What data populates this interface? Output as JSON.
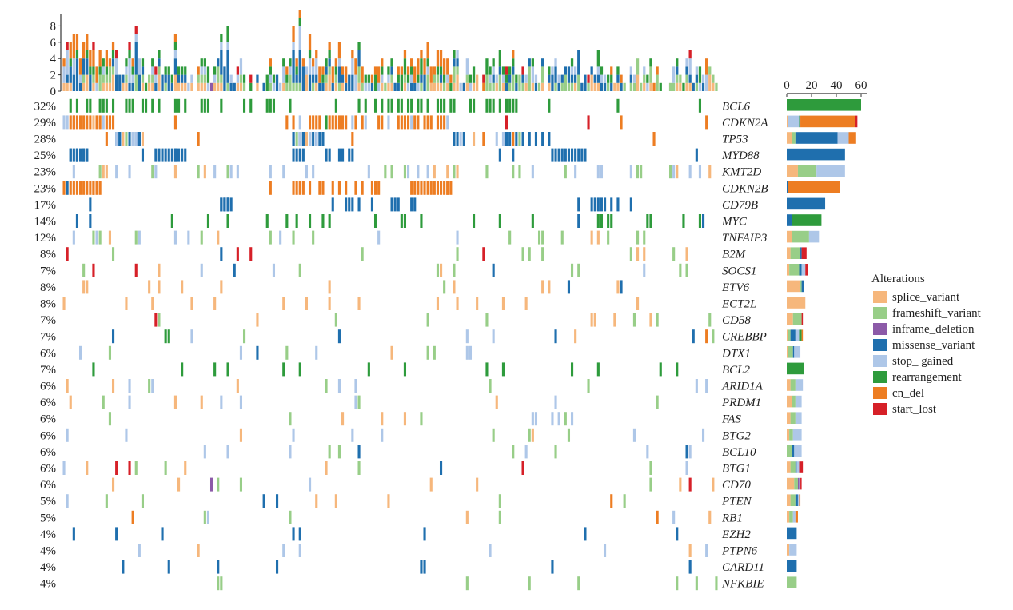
{
  "chart_data": {
    "type": "oncoprint",
    "top_axis": {
      "ticks": [
        0,
        2,
        4,
        6,
        8
      ],
      "ylim": [
        0,
        9.5
      ]
    },
    "side_axis": {
      "ticks": [
        0,
        20,
        40,
        60
      ],
      "xlim": [
        0,
        65
      ]
    },
    "genes": [
      {
        "name": "BCL6",
        "pct": "32%",
        "counts": {
          "rearrangement": 60
        }
      },
      {
        "name": "CDKN2A",
        "pct": "29%",
        "counts": {
          "splice_variant": 1,
          "stop_ gained": 9,
          "rearrangement": 1,
          "cn_del": 44,
          "start_lost": 2
        }
      },
      {
        "name": "TP53",
        "pct": "28%",
        "counts": {
          "splice_variant": 4,
          "frameshift_variant": 3,
          "missense_variant": 34,
          "stop_ gained": 9,
          "cn_del": 6
        }
      },
      {
        "name": "MYD88",
        "pct": "25%",
        "counts": {
          "missense_variant": 47
        }
      },
      {
        "name": "KMT2D",
        "pct": "23%",
        "counts": {
          "splice_variant": 9,
          "frameshift_variant": 15,
          "stop_ gained": 23
        }
      },
      {
        "name": "CDKN2B",
        "pct": "23%",
        "counts": {
          "missense_variant": 1,
          "cn_del": 42
        }
      },
      {
        "name": "CD79B",
        "pct": "17%",
        "counts": {
          "missense_variant": 31
        }
      },
      {
        "name": "MYC",
        "pct": "14%",
        "counts": {
          "missense_variant": 4,
          "rearrangement": 24
        }
      },
      {
        "name": "TNFAIP3",
        "pct": "12%",
        "counts": {
          "splice_variant": 4,
          "frameshift_variant": 14,
          "stop_ gained": 8
        }
      },
      {
        "name": "B2M",
        "pct": "8%",
        "counts": {
          "splice_variant": 3,
          "frameshift_variant": 8,
          "missense_variant": 1,
          "start_lost": 4
        }
      },
      {
        "name": "SOCS1",
        "pct": "7%",
        "counts": {
          "splice_variant": 2,
          "frameshift_variant": 8,
          "missense_variant": 2,
          "stop_ gained": 3,
          "start_lost": 2
        }
      },
      {
        "name": "ETV6",
        "pct": "8%",
        "counts": {
          "splice_variant": 11,
          "frameshift_variant": 1,
          "missense_variant": 2
        }
      },
      {
        "name": "ECT2L",
        "pct": "8%",
        "counts": {
          "splice_variant": 15
        }
      },
      {
        "name": "CD58",
        "pct": "7%",
        "counts": {
          "splice_variant": 5,
          "frameshift_variant": 7,
          "start_lost": 1
        }
      },
      {
        "name": "CREBBP",
        "pct": "7%",
        "counts": {
          "frameshift_variant": 2,
          "missense_variant": 4,
          "stop_ gained": 3,
          "rearrangement": 2,
          "splice_variant": 1,
          "cn_del": 1
        }
      },
      {
        "name": "DTX1",
        "pct": "6%",
        "counts": {
          "frameshift_variant": 4,
          "missense_variant": 1,
          "splice_variant": 1,
          "stop_ gained": 5
        }
      },
      {
        "name": "BCL2",
        "pct": "7%",
        "counts": {
          "rearrangement": 14
        }
      },
      {
        "name": "ARID1A",
        "pct": "6%",
        "counts": {
          "splice_variant": 3,
          "frameshift_variant": 4,
          "stop_ gained": 6
        }
      },
      {
        "name": "PRDM1",
        "pct": "6%",
        "counts": {
          "splice_variant": 4,
          "frameshift_variant": 3,
          "stop_ gained": 5
        }
      },
      {
        "name": "FAS",
        "pct": "6%",
        "counts": {
          "splice_variant": 3,
          "frameshift_variant": 4,
          "stop_ gained": 5
        }
      },
      {
        "name": "BTG2",
        "pct": "6%",
        "counts": {
          "splice_variant": 2,
          "frameshift_variant": 3,
          "stop_ gained": 7
        }
      },
      {
        "name": "BCL10",
        "pct": "6%",
        "counts": {
          "frameshift_variant": 4,
          "missense_variant": 2,
          "stop_ gained": 6
        }
      },
      {
        "name": "BTG1",
        "pct": "6%",
        "counts": {
          "splice_variant": 3,
          "frameshift_variant": 4,
          "missense_variant": 1,
          "stop_ gained": 2,
          "start_lost": 3
        }
      },
      {
        "name": "CD70",
        "pct": "6%",
        "counts": {
          "splice_variant": 6,
          "frameshift_variant": 3,
          "inframe_deletion": 1,
          "stop_ gained": 1,
          "start_lost": 1
        }
      },
      {
        "name": "PTEN",
        "pct": "5%",
        "counts": {
          "splice_variant": 3,
          "frameshift_variant": 4,
          "missense_variant": 2,
          "stop_ gained": 1,
          "cn_del": 1
        }
      },
      {
        "name": "RB1",
        "pct": "5%",
        "counts": {
          "splice_variant": 2,
          "frameshift_variant": 3,
          "stop_ gained": 2,
          "cn_del": 2
        }
      },
      {
        "name": "EZH2",
        "pct": "4%",
        "counts": {
          "missense_variant": 8
        }
      },
      {
        "name": "PTPN6",
        "pct": "4%",
        "counts": {
          "splice_variant": 2,
          "stop_ gained": 6
        }
      },
      {
        "name": "CARD11",
        "pct": "4%",
        "counts": {
          "missense_variant": 8
        }
      },
      {
        "name": "NFKBIE",
        "pct": "4%",
        "counts": {
          "frameshift_variant": 8
        }
      }
    ],
    "legend": {
      "title": "Alterations",
      "items": [
        {
          "label": "splice_variant",
          "color": "#f6b77c"
        },
        {
          "label": "frameshift_variant",
          "color": "#98ce88"
        },
        {
          "label": "inframe_deletion",
          "color": "#8c5aa8"
        },
        {
          "label": "missense_variant",
          "color": "#1f6fae"
        },
        {
          "label": "stop_ gained",
          "color": "#aec7e8"
        },
        {
          "label": "rearrangement",
          "color": "#2e9b3c"
        },
        {
          "label": "cn_del",
          "color": "#ed7d22"
        },
        {
          "label": "start_lost",
          "color": "#d62028"
        }
      ]
    }
  }
}
